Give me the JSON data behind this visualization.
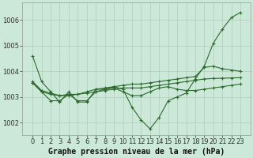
{
  "title": "Graphe pression niveau de la mer (hPa)",
  "background_color": "#cbe8d8",
  "line_color": "#2d6a2d",
  "grid_color": "#b0ccbb",
  "series": {
    "s1": [
      1004.6,
      1003.6,
      1003.2,
      1002.8,
      1003.2,
      1002.8,
      1002.8,
      1003.3,
      1003.3,
      1003.4,
      1003.3,
      1002.6,
      1002.1,
      1001.75,
      1002.2,
      1002.85,
      1003.0,
      1003.15,
      1003.7,
      1004.2,
      1005.1,
      1005.65,
      1006.1,
      1006.3
    ],
    "s2": [
      1003.6,
      1003.25,
      1003.15,
      1003.05,
      1003.05,
      1003.1,
      1003.2,
      1003.3,
      1003.35,
      1003.4,
      1003.45,
      1003.5,
      1003.5,
      1003.55,
      1003.6,
      1003.65,
      1003.7,
      1003.75,
      1003.8,
      1004.15,
      1004.2,
      1004.1,
      1004.05,
      1004.0
    ],
    "s3": [
      1003.55,
      1003.2,
      1003.1,
      1003.05,
      1003.1,
      1003.1,
      1003.15,
      1003.2,
      1003.25,
      1003.3,
      1003.35,
      1003.35,
      1003.35,
      1003.4,
      1003.45,
      1003.5,
      1003.55,
      1003.6,
      1003.65,
      1003.7,
      1003.72,
      1003.73,
      1003.74,
      1003.75
    ],
    "s4": [
      1003.55,
      1003.2,
      1002.85,
      1002.85,
      1003.1,
      1002.85,
      1002.85,
      1003.2,
      1003.3,
      1003.35,
      1003.2,
      1003.05,
      1003.05,
      1003.2,
      1003.35,
      1003.4,
      1003.3,
      1003.25,
      1003.25,
      1003.3,
      1003.35,
      1003.4,
      1003.45,
      1003.5
    ]
  },
  "ylim": [
    1001.5,
    1006.7
  ],
  "yticks": [
    1002,
    1003,
    1004,
    1005,
    1006
  ],
  "xticks": [
    0,
    1,
    2,
    3,
    4,
    5,
    6,
    7,
    8,
    9,
    10,
    11,
    12,
    13,
    14,
    15,
    16,
    17,
    18,
    19,
    20,
    21,
    22,
    23
  ],
  "tick_fontsize": 6,
  "title_fontsize": 7
}
